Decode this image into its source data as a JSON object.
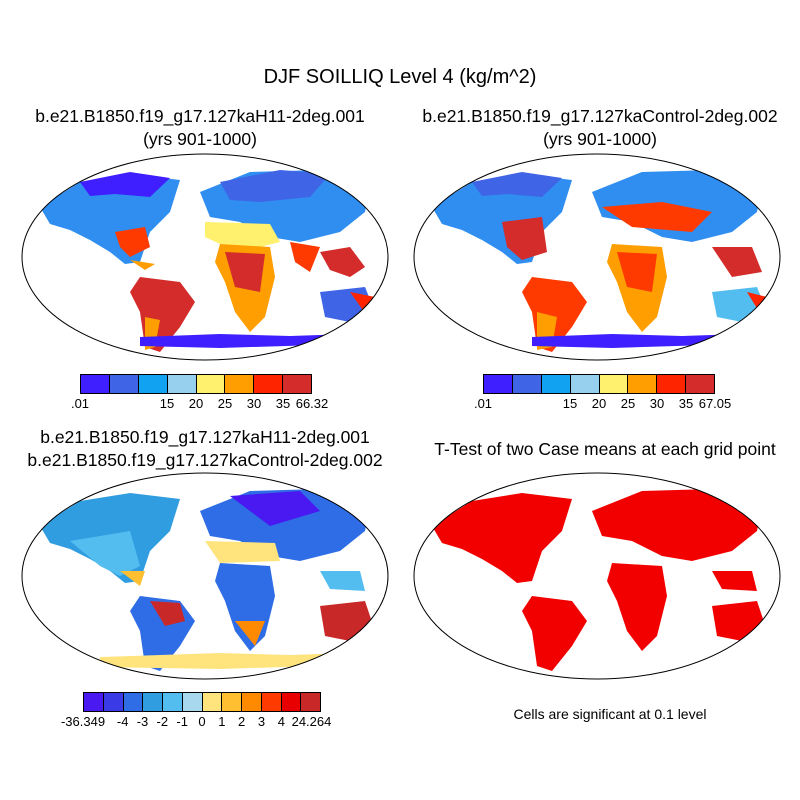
{
  "title": "DJF SOILLIQ Level 4 (kg/m^2)",
  "panels": [
    {
      "title_line1": "b.e21.B1850.f19_g17.127kaH11-2deg.001",
      "title_line2": "(yrs 901-1000)"
    },
    {
      "title_line1": "b.e21.B1850.f19_g17.127kaControl-2deg.002",
      "title_line2": "(yrs 901-1000)"
    },
    {
      "title_line1": "b.e21.B1850.f19_g17.127kaH11-2deg.001",
      "title_line2": "b.e21.B1850.f19_g17.127kaControl-2deg.002"
    },
    {
      "title_line1": "T-Test of two Case means at each grid point"
    }
  ],
  "colorbars": [
    {
      "colors": [
        "#3f1fff",
        "#3f64e6",
        "#11a2f2",
        "#97cfee",
        "#fff06e",
        "#ff9e00",
        "#ff2400",
        "#d42b2b"
      ],
      "labels": [
        ".01",
        "15",
        "20",
        "25",
        "30",
        "35",
        "66.32"
      ]
    },
    {
      "colors": [
        "#3f1fff",
        "#3f64e6",
        "#11a2f2",
        "#97cfee",
        "#fff06e",
        "#ff9e00",
        "#ff2400",
        "#d42b2b"
      ],
      "labels": [
        ".01",
        "15",
        "20",
        "25",
        "30",
        "35",
        "67.05"
      ]
    },
    {
      "colors": [
        "#4a18f0",
        "#3a3be6",
        "#2f6de6",
        "#2f9de0",
        "#54bdf0",
        "#a8d8ee",
        "#ffe47e",
        "#ffbf30",
        "#ff8a00",
        "#ff3a00",
        "#e80000",
        "#c82828"
      ],
      "labels": [
        "-36.349",
        "-4",
        "-3",
        "-2",
        "-1",
        "0",
        "1",
        "2",
        "3",
        "4",
        "24.264"
      ]
    }
  ],
  "significance_note": "Cells are significant at 0.1 level"
}
